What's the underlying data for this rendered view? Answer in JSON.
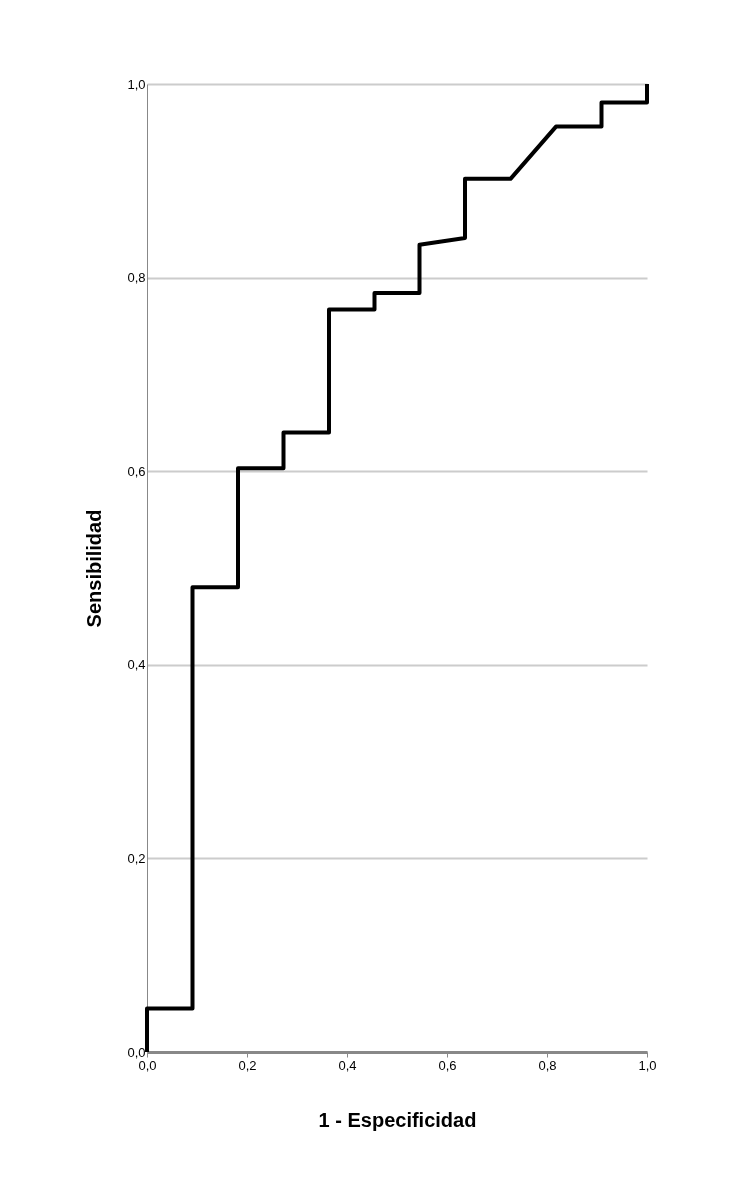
{
  "chart_data": {
    "type": "line",
    "xlabel": "1 - Especificidad",
    "ylabel": "Sensibilidad",
    "x": [
      0,
      0,
      0.091,
      0.091,
      0.182,
      0.182,
      0.273,
      0.273,
      0.364,
      0.364,
      0.455,
      0.455,
      0.545,
      0.545,
      0.636,
      0.636,
      0.727,
      0.818,
      0.909,
      0.909,
      1,
      1
    ],
    "series": [
      {
        "color": "#000000",
        "values": [
          0,
          0.045,
          0.045,
          0.48,
          0.48,
          0.603,
          0.603,
          0.64,
          0.64,
          0.767,
          0.767,
          0.784,
          0.784,
          0.834,
          0.841,
          0.902,
          0.902,
          0.956,
          0.956,
          0.981,
          0.981,
          1
        ]
      }
    ],
    "xlim": [
      0,
      1
    ],
    "ylim": [
      0,
      1
    ],
    "xticks": [
      {
        "value": 0,
        "label": "0,0"
      },
      {
        "value": 0.2,
        "label": "0,2"
      },
      {
        "value": 0.4,
        "label": "0,4"
      },
      {
        "value": 0.6,
        "label": "0,6"
      },
      {
        "value": 0.8,
        "label": "0,8"
      },
      {
        "value": 1,
        "label": "1,0"
      }
    ],
    "yticks": [
      {
        "value": 0,
        "label": "0,0"
      },
      {
        "value": 0.2,
        "label": "0,2"
      },
      {
        "value": 0.4,
        "label": "0,4"
      },
      {
        "value": 0.6,
        "label": "0,6"
      },
      {
        "value": 0.8,
        "label": "0,8"
      },
      {
        "value": 1,
        "label": "1,0"
      }
    ],
    "grid": "y",
    "line_style": "solid",
    "marker": "none"
  }
}
